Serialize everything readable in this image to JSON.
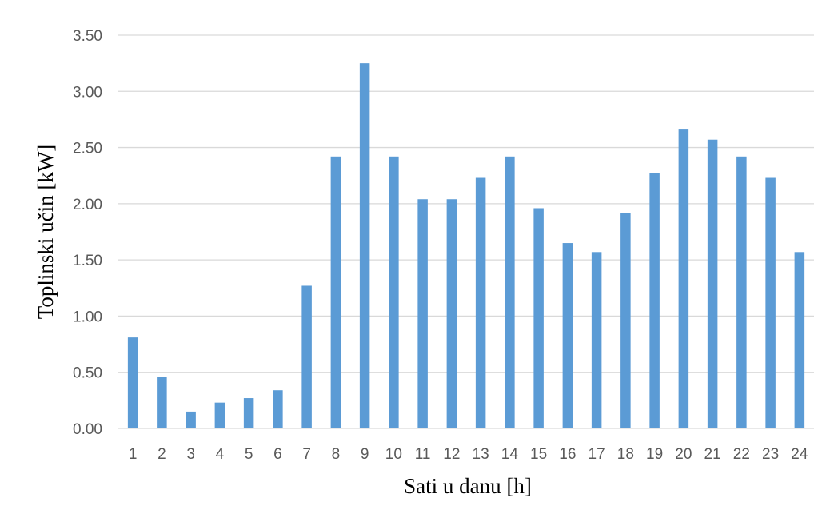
{
  "chart_data": {
    "type": "bar",
    "xlabel": "Sati u danu [h]",
    "ylabel": "Toplinski učin [kW]",
    "categories": [
      "1",
      "2",
      "3",
      "4",
      "5",
      "6",
      "7",
      "8",
      "9",
      "10",
      "11",
      "12",
      "13",
      "14",
      "15",
      "16",
      "17",
      "18",
      "19",
      "20",
      "21",
      "22",
      "23",
      "24"
    ],
    "values": [
      0.81,
      0.46,
      0.15,
      0.23,
      0.27,
      0.34,
      1.27,
      2.42,
      3.25,
      2.42,
      2.04,
      2.04,
      2.23,
      2.42,
      1.96,
      1.65,
      1.57,
      1.92,
      2.27,
      2.66,
      2.57,
      2.42,
      2.23,
      1.57
    ],
    "yticks": [
      "0.00",
      "0.50",
      "1.00",
      "1.50",
      "2.00",
      "2.50",
      "3.00",
      "3.50"
    ],
    "ylim": [
      0,
      3.5
    ],
    "grid": true,
    "legend": "none",
    "bar_color": "#5b9bd5"
  }
}
